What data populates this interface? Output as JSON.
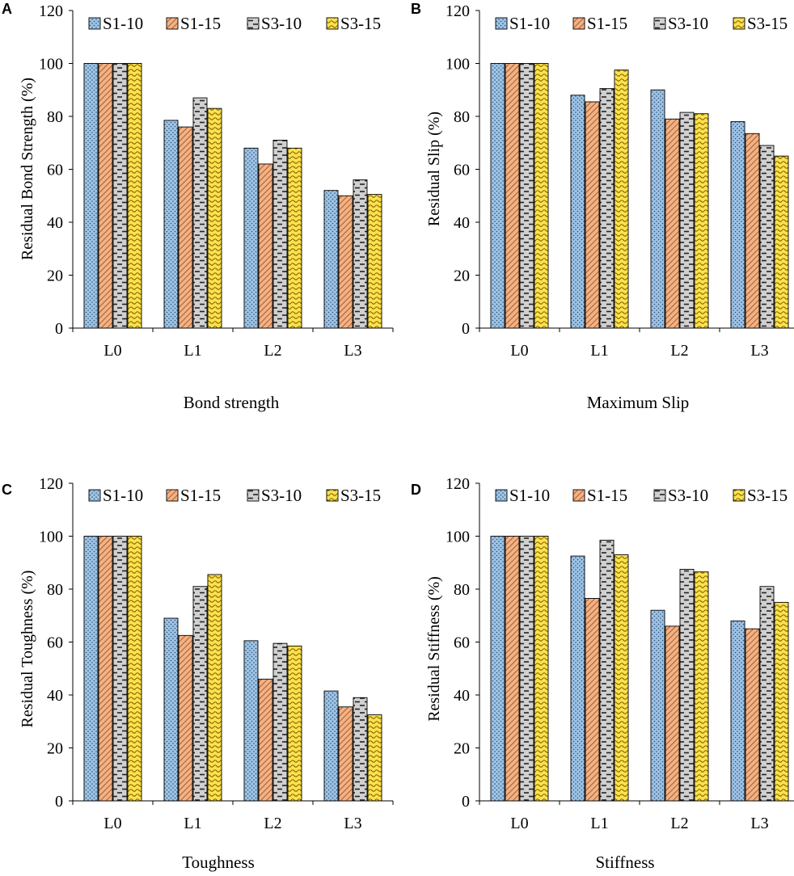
{
  "figure": {
    "series": [
      {
        "name": "S1-10",
        "color": "#9dc3e6",
        "pattern": "dots"
      },
      {
        "name": "S1-15",
        "color": "#f4b183",
        "pattern": "diag"
      },
      {
        "name": "S3-10",
        "color": "#d0d0d0",
        "pattern": "dash"
      },
      {
        "name": "S3-15",
        "color": "#ffe14d",
        "pattern": "wave"
      }
    ],
    "panels": [
      {
        "letter": "A",
        "caption": "Bond strength"
      },
      {
        "letter": "B",
        "caption": "Maximum Slip"
      },
      {
        "letter": "C",
        "caption": "Toughness"
      },
      {
        "letter": "D",
        "caption": "Stiffness"
      }
    ]
  },
  "chart_data": [
    {
      "type": "bar",
      "panel": "A",
      "title": "Bond strength",
      "xlabel": "",
      "ylabel": "Residual Bond Strength (%)",
      "categories": [
        "L0",
        "L1",
        "L2",
        "L3"
      ],
      "ylim": [
        0,
        120
      ],
      "yticks": [
        0,
        20,
        40,
        60,
        80,
        100,
        120
      ],
      "legend_position": "top",
      "grid": false,
      "series": [
        {
          "name": "S1-10",
          "values": [
            100,
            78.5,
            68,
            52
          ]
        },
        {
          "name": "S1-15",
          "values": [
            100,
            76,
            62,
            50
          ]
        },
        {
          "name": "S3-10",
          "values": [
            100,
            87,
            71,
            56
          ]
        },
        {
          "name": "S3-15",
          "values": [
            100,
            83,
            68,
            50.5
          ]
        }
      ]
    },
    {
      "type": "bar",
      "panel": "B",
      "title": "Maximum Slip",
      "xlabel": "",
      "ylabel": "Residual Slip (%)",
      "categories": [
        "L0",
        "L1",
        "L2",
        "L3"
      ],
      "ylim": [
        0,
        120
      ],
      "yticks": [
        0,
        20,
        40,
        60,
        80,
        100,
        120
      ],
      "legend_position": "top",
      "grid": false,
      "series": [
        {
          "name": "S1-10",
          "values": [
            100,
            88,
            90,
            78
          ]
        },
        {
          "name": "S1-15",
          "values": [
            100,
            85.5,
            79,
            73.5
          ]
        },
        {
          "name": "S3-10",
          "values": [
            100,
            90.5,
            81.5,
            69
          ]
        },
        {
          "name": "S3-15",
          "values": [
            100,
            97.5,
            81,
            65
          ]
        }
      ]
    },
    {
      "type": "bar",
      "panel": "C",
      "title": "Toughness",
      "xlabel": "",
      "ylabel": "Residual Toughness (%)",
      "categories": [
        "L0",
        "L1",
        "L2",
        "L3"
      ],
      "ylim": [
        0,
        120
      ],
      "yticks": [
        0,
        20,
        40,
        60,
        80,
        100,
        120
      ],
      "legend_position": "top",
      "grid": false,
      "series": [
        {
          "name": "S1-10",
          "values": [
            100,
            69,
            60.5,
            41.5
          ]
        },
        {
          "name": "S1-15",
          "values": [
            100,
            62.5,
            46,
            35.5
          ]
        },
        {
          "name": "S3-10",
          "values": [
            100,
            81,
            59.5,
            39
          ]
        },
        {
          "name": "S3-15",
          "values": [
            100,
            85.5,
            58.5,
            32.5
          ]
        }
      ]
    },
    {
      "type": "bar",
      "panel": "D",
      "title": "Stiffness",
      "xlabel": "",
      "ylabel": "Residual Stiffness (%)",
      "categories": [
        "L0",
        "L1",
        "L2",
        "L3"
      ],
      "ylim": [
        0,
        120
      ],
      "yticks": [
        0,
        20,
        40,
        60,
        80,
        100,
        120
      ],
      "legend_position": "top",
      "grid": false,
      "series": [
        {
          "name": "S1-10",
          "values": [
            100,
            92.5,
            72,
            68
          ]
        },
        {
          "name": "S1-15",
          "values": [
            100,
            76.5,
            66,
            65
          ]
        },
        {
          "name": "S3-10",
          "values": [
            100,
            98.5,
            87.5,
            81
          ]
        },
        {
          "name": "S3-15",
          "values": [
            100,
            93,
            86.5,
            75
          ]
        }
      ]
    }
  ]
}
